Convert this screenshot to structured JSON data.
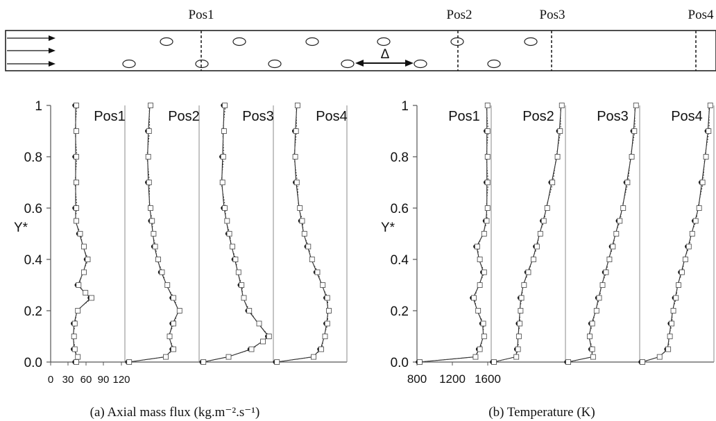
{
  "schematic": {
    "position_labels": [
      "Pos1",
      "Pos2",
      "Pos3",
      "Pos4"
    ],
    "spacing_label": "Δ"
  },
  "chart_data": [
    {
      "type": "line",
      "caption": "(a) Axial mass flux (kg.m⁻².s⁻¹)",
      "ylabel": "Y*",
      "ylim": [
        0,
        1
      ],
      "yticks": [
        "0.0",
        "0.2",
        "0.4",
        "0.6",
        "0.8",
        "1"
      ],
      "xticks": [
        "0",
        "30",
        "60",
        "90",
        "120"
      ],
      "xlim": [
        0,
        90
      ],
      "panels": [
        {
          "label": "Pos1",
          "y": [
            0.0,
            0.02,
            0.05,
            0.1,
            0.15,
            0.2,
            0.25,
            0.27,
            0.3,
            0.35,
            0.4,
            0.45,
            0.5,
            0.55,
            0.6,
            0.7,
            0.8,
            0.9,
            1.0
          ],
          "x": [
            30,
            32,
            28,
            27,
            28,
            32,
            50,
            42,
            33,
            40,
            45,
            40,
            35,
            30,
            30,
            30,
            30,
            30,
            30
          ]
        },
        {
          "label": "Pos2",
          "y": [
            0.0,
            0.02,
            0.05,
            0.1,
            0.15,
            0.2,
            0.25,
            0.3,
            0.35,
            0.4,
            0.45,
            0.5,
            0.55,
            0.6,
            0.7,
            0.8,
            0.9,
            1.0
          ],
          "x": [
            2,
            50,
            60,
            55,
            60,
            68,
            60,
            52,
            45,
            40,
            36,
            34,
            32,
            30,
            28,
            27,
            28,
            30
          ]
        },
        {
          "label": "Pos3",
          "y": [
            0.0,
            0.02,
            0.05,
            0.08,
            0.1,
            0.15,
            0.2,
            0.25,
            0.3,
            0.35,
            0.4,
            0.45,
            0.5,
            0.55,
            0.6,
            0.7,
            0.8,
            0.9,
            1.0
          ],
          "x": [
            2,
            35,
            65,
            80,
            88,
            75,
            62,
            55,
            52,
            48,
            44,
            40,
            36,
            33,
            30,
            27,
            28,
            29,
            30
          ]
        },
        {
          "label": "Pos4",
          "y": [
            0.0,
            0.02,
            0.05,
            0.1,
            0.15,
            0.2,
            0.25,
            0.3,
            0.35,
            0.4,
            0.45,
            0.5,
            0.55,
            0.6,
            0.7,
            0.8,
            0.9,
            1.0
          ],
          "x": [
            2,
            50,
            60,
            65,
            68,
            70,
            68,
            62,
            55,
            48,
            43,
            38,
            35,
            32,
            28,
            26,
            27,
            29
          ]
        }
      ]
    },
    {
      "type": "line",
      "caption": "(b) Temperature (K)",
      "ylabel": "Y*",
      "ylim": [
        0,
        1
      ],
      "yticks": [
        "0.0",
        "0.2",
        "0.4",
        "0.6",
        "0.8",
        "1"
      ],
      "xticks": [
        "800",
        "1200",
        "1600"
      ],
      "xlim": [
        800,
        1600
      ],
      "panels": [
        {
          "label": "Pos1",
          "y": [
            0.0,
            0.02,
            0.05,
            0.1,
            0.15,
            0.2,
            0.25,
            0.3,
            0.35,
            0.4,
            0.45,
            0.5,
            0.55,
            0.6,
            0.7,
            0.8,
            0.9,
            1.0
          ],
          "x": [
            800,
            1450,
            1500,
            1550,
            1540,
            1480,
            1430,
            1500,
            1550,
            1500,
            1470,
            1550,
            1580,
            1590,
            1590,
            1590,
            1590,
            1590
          ]
        },
        {
          "label": "Pos2",
          "y": [
            0.0,
            0.02,
            0.05,
            0.1,
            0.15,
            0.2,
            0.25,
            0.3,
            0.35,
            0.4,
            0.45,
            0.5,
            0.55,
            0.6,
            0.7,
            0.8,
            0.9,
            1.0
          ],
          "x": [
            800,
            1060,
            1080,
            1090,
            1100,
            1110,
            1120,
            1150,
            1200,
            1260,
            1300,
            1340,
            1380,
            1420,
            1480,
            1540,
            1570,
            1590
          ]
        },
        {
          "label": "Pos3",
          "y": [
            0.0,
            0.02,
            0.05,
            0.1,
            0.15,
            0.2,
            0.25,
            0.3,
            0.35,
            0.4,
            0.45,
            0.5,
            0.55,
            0.6,
            0.7,
            0.8,
            0.9,
            1.0
          ],
          "x": [
            800,
            1090,
            1080,
            1050,
            1080,
            1130,
            1160,
            1200,
            1240,
            1280,
            1320,
            1360,
            1400,
            1440,
            1490,
            1540,
            1570,
            1590
          ]
        },
        {
          "label": "Pos4",
          "y": [
            0.0,
            0.02,
            0.05,
            0.1,
            0.15,
            0.2,
            0.25,
            0.3,
            0.35,
            0.4,
            0.45,
            0.5,
            0.55,
            0.6,
            0.7,
            0.8,
            0.9,
            1.0
          ],
          "x": [
            800,
            1000,
            1100,
            1120,
            1140,
            1160,
            1190,
            1220,
            1260,
            1300,
            1340,
            1380,
            1420,
            1460,
            1500,
            1540,
            1570,
            1590
          ]
        }
      ]
    }
  ]
}
